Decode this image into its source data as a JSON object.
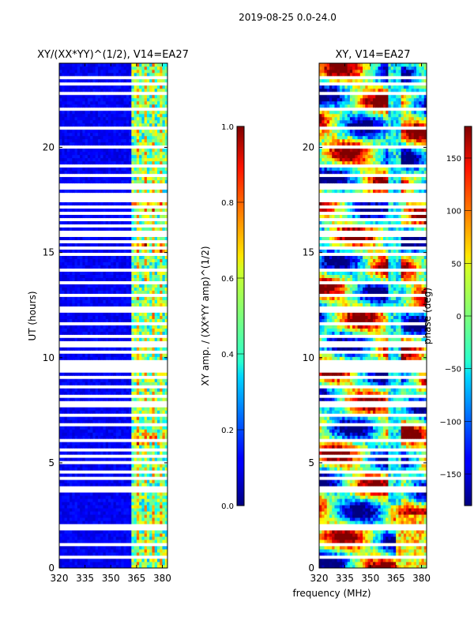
{
  "suptitle": "2019-08-25 0.0-24.0",
  "chart_data": [
    {
      "type": "heatmap",
      "title": "XY/(XX*YY)^(1/2), V14=EA27",
      "xlabel": "frequency (MHz)",
      "ylabel": "UT (hours)",
      "xlim": [
        320,
        383
      ],
      "ylim": [
        0,
        24
      ],
      "xticks": [
        320,
        335,
        350,
        365,
        380
      ],
      "yticks": [
        0,
        5,
        10,
        15,
        20
      ],
      "colorbar": {
        "label": "XY amp. / (XX*YY amp)^(1/2)",
        "range": [
          0.0,
          1.0
        ],
        "ticks": [
          "0.0",
          "0.2",
          "0.4",
          "0.6",
          "0.8",
          "1.0"
        ]
      },
      "colormap": "jet",
      "description_of_data": "normalized amplitude, mostly ~0.1 below 362 MHz, 0.3-0.8 in channels 362-382 MHz"
    },
    {
      "type": "heatmap",
      "title": "XY, V14=EA27",
      "xlabel": "frequency (MHz)",
      "ylabel": "",
      "xlim": [
        320,
        383
      ],
      "ylim": [
        0,
        24
      ],
      "xticks": [
        320,
        335,
        350,
        365,
        380
      ],
      "yticks": [
        0,
        5,
        10,
        15,
        20
      ],
      "colorbar": {
        "label": "phase (deg)",
        "range": [
          -180,
          180
        ],
        "ticks": [
          "150",
          "100",
          "50",
          "0",
          "−50",
          "−100",
          "−150"
        ]
      },
      "colormap": "jet",
      "description_of_data": "XY phase varying across full range; blank rows at flagged times"
    }
  ],
  "flagged_hours": [
    0.3,
    0.45,
    1.1,
    1.5,
    1.85,
    2.05,
    2.55,
    3.3,
    3.65,
    3.85,
    4.25,
    4.6,
    5.05,
    5.35,
    5.6,
    6.05,
    6.6,
    6.85,
    7.3,
    7.75,
    7.85,
    8.15,
    8.6,
    9.05,
    9.45,
    9.75,
    10.3,
    10.55,
    10.75,
    11.05,
    11.65,
    12.3,
    12.95,
    13.6,
    14.2,
    14.85,
    15.2,
    15.55,
    15.8,
    16.0,
    16.3,
    16.55,
    16.85,
    17.2,
    17.55,
    17.8,
    18.05,
    18.2,
    18.6,
    19.1,
    20.0,
    20.9,
    21.8,
    22.6,
    23.05,
    23.3
  ]
}
